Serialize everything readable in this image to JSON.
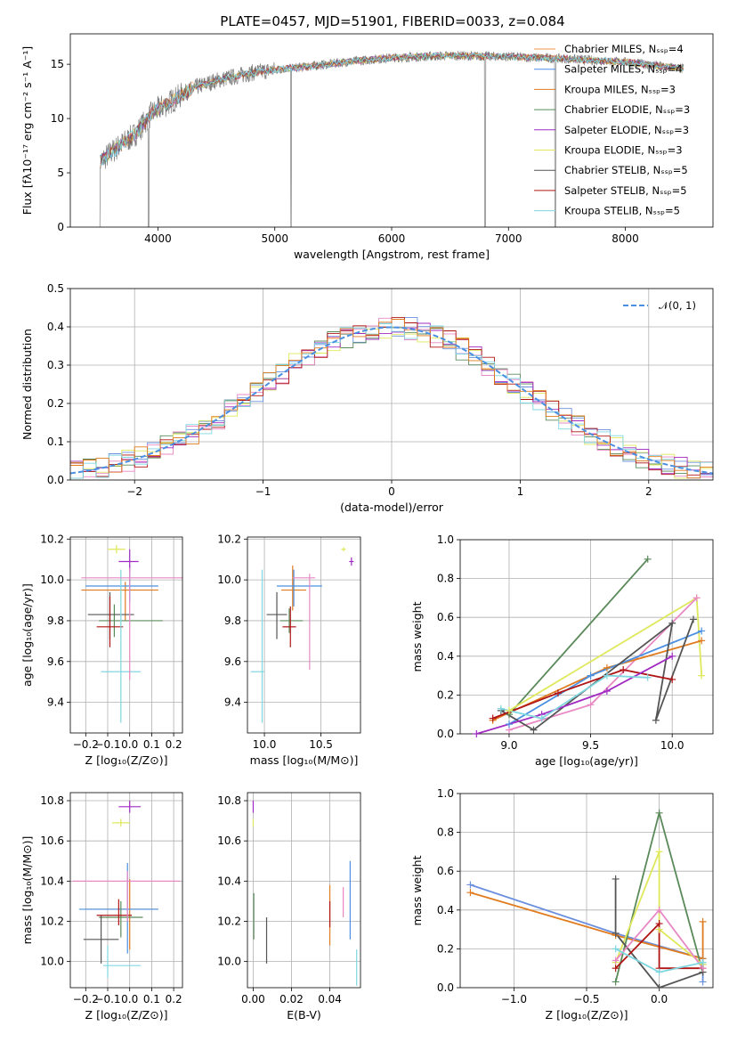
{
  "figure_title": "PLATE=0457, MJD=51901, FIBERID=0033, z=0.084",
  "colors": {
    "series": [
      "#f29544",
      "#4a90e2",
      "#e07b1f",
      "#5a8a5a",
      "#a12bc2",
      "#dfe85a",
      "#555555",
      "#b01515",
      "#7fd7e0"
    ],
    "extra": [
      "#e888c4",
      "#6a8fdf"
    ]
  },
  "chart_data": [
    {
      "id": "spectrum",
      "type": "line",
      "title": "PLATE=0457, MJD=51901, FIBERID=0033, z=0.084",
      "xlabel": "wavelength [Angstrom, rest frame]",
      "ylabel": "Flux [fλ10⁻¹⁷ erg cm⁻² s⁻¹ A⁻¹]",
      "xlim": [
        3250,
        8750
      ],
      "ylim": [
        0,
        17.8
      ],
      "xticks": [
        "4000",
        "5000",
        "6000",
        "7000",
        "8000"
      ],
      "yticks": [
        "0",
        "5",
        "10",
        "15"
      ],
      "grid": false,
      "legend_position": "top-right",
      "series": [
        {
          "name": "Chabrier MILES, Nₛₛₚ=4"
        },
        {
          "name": "Salpeter MILES, Nₛₛₚ=4"
        },
        {
          "name": "Kroupa MILES, Nₛₛₚ=3"
        },
        {
          "name": "Chabrier ELODIE, Nₛₛₚ=3"
        },
        {
          "name": "Salpeter ELODIE, Nₛₛₚ=3"
        },
        {
          "name": "Kroupa ELODIE, Nₛₛₚ=3"
        },
        {
          "name": "Chabrier STELIB, Nₛₛₚ=5"
        },
        {
          "name": "Salpeter STELIB, Nₛₛₚ=5"
        },
        {
          "name": "Kroupa STELIB, Nₛₛₚ=5"
        }
      ],
      "continuum": [
        [
          3500,
          6.0
        ],
        [
          3650,
          7.3
        ],
        [
          3800,
          8.5
        ],
        [
          3950,
          10.5
        ],
        [
          4100,
          11.5
        ],
        [
          4300,
          12.8
        ],
        [
          4500,
          13.5
        ],
        [
          4800,
          14.2
        ],
        [
          5000,
          14.5
        ],
        [
          5300,
          14.8
        ],
        [
          5600,
          15.2
        ],
        [
          6000,
          15.6
        ],
        [
          6500,
          15.8
        ],
        [
          7000,
          15.7
        ],
        [
          7500,
          15.5
        ],
        [
          8000,
          15.2
        ],
        [
          8500,
          14.6
        ]
      ],
      "absorption_features": [
        [
          3500,
          0
        ],
        [
          3920,
          0
        ],
        [
          5140,
          0
        ],
        [
          6800,
          0
        ],
        [
          7400,
          0
        ]
      ]
    },
    {
      "id": "residuals",
      "type": "histogram",
      "xlabel": "(data-model)/error",
      "ylabel": "Normed distribution",
      "xlim": [
        -2.5,
        2.5
      ],
      "ylim": [
        0,
        0.5
      ],
      "xticks": [
        "−2",
        "−1",
        "0",
        "1",
        "2"
      ],
      "yticks": [
        "0.0",
        "0.1",
        "0.2",
        "0.3",
        "0.4",
        "0.5"
      ],
      "grid": true,
      "legend_position": "top-right",
      "legend": "𝒩(0, 1)",
      "bin_width": 0.1,
      "model_curve": "normal(0,1)"
    },
    {
      "id": "age_vs_Z",
      "type": "errorbar",
      "xlabel": "Z [log₁₀(Z/Z⊙)]",
      "ylabel": "age  [log₁₀(age/yr)]",
      "xlim": [
        -0.27,
        0.24
      ],
      "ylim": [
        9.25,
        10.21
      ],
      "xticks": [
        -0.2,
        -0.1,
        0.0,
        0.1,
        0.2
      ],
      "xticklabels": [
        "−0.2",
        "−0.1",
        "0.0",
        "0.1",
        "0.2"
      ],
      "yticks": [
        9.4,
        9.6,
        9.8,
        10.0,
        10.2
      ],
      "yticklabels": [
        "9.4",
        "9.6",
        "9.8",
        "10.0",
        "10.2"
      ],
      "grid": true,
      "points": [
        {
          "x": -0.02,
          "y": 9.95,
          "xerr": [
            0.2,
            0.15
          ],
          "yerr": [
            0.15,
            0.04
          ],
          "color": "#e07b1f"
        },
        {
          "x": 0.0,
          "y": 9.97,
          "xerr": [
            0.2,
            0.13
          ],
          "yerr": [
            0.08,
            0.1
          ],
          "color": "#4a90e2"
        },
        {
          "x": -0.07,
          "y": 9.8,
          "xerr": [
            0.07,
            0.22
          ],
          "yerr": [
            0.08,
            0.08
          ],
          "color": "#5a8a5a"
        },
        {
          "x": 0.0,
          "y": 10.09,
          "xerr": [
            0.05,
            0.04
          ],
          "yerr": [
            0.05,
            0.06
          ],
          "color": "#a12bc2"
        },
        {
          "x": -0.06,
          "y": 10.15,
          "xerr": [
            0.04,
            0.04
          ],
          "yerr": [
            0.02,
            0.02
          ],
          "color": "#dfe85a"
        },
        {
          "x": -0.09,
          "y": 9.83,
          "xerr": [
            0.1,
            0.11
          ],
          "yerr": [
            0.12,
            0.11
          ],
          "color": "#555555"
        },
        {
          "x": -0.09,
          "y": 9.77,
          "xerr": [
            0.06,
            0.06
          ],
          "yerr": [
            0.1,
            0.15
          ],
          "color": "#b01515"
        },
        {
          "x": -0.04,
          "y": 9.55,
          "xerr": [
            0.09,
            0.09
          ],
          "yerr": [
            0.25,
            0.5
          ],
          "color": "#7fd7e0"
        },
        {
          "x": 0.0,
          "y": 10.01,
          "xerr": [
            0.22,
            0.24
          ],
          "yerr": [
            0.5,
            0.05
          ],
          "color": "#e888c4"
        }
      ]
    },
    {
      "id": "age_vs_mass",
      "type": "errorbar",
      "xlabel": "mass [log₁₀(M/M⊙)]",
      "ylabel": "",
      "xlim": [
        9.85,
        10.85
      ],
      "ylim": [
        9.25,
        10.21
      ],
      "xticks": [
        10.0,
        10.5
      ],
      "xticklabels": [
        "10.0",
        "10.5"
      ],
      "yticks": [
        9.4,
        9.6,
        9.8,
        10.0,
        10.2
      ],
      "yticklabels": [
        "9.4",
        "9.6",
        "9.8",
        "10.0",
        "10.2"
      ],
      "grid": true,
      "points": [
        {
          "x": 10.25,
          "y": 9.95,
          "xerr": [
            0.1,
            0.12
          ],
          "yerr": [
            0.1,
            0.12
          ],
          "color": "#e07b1f"
        },
        {
          "x": 10.26,
          "y": 9.97,
          "xerr": [
            0.15,
            0.25
          ],
          "yerr": [
            0.1,
            0.08
          ],
          "color": "#4a90e2"
        },
        {
          "x": 10.22,
          "y": 9.8,
          "xerr": [
            0.08,
            0.12
          ],
          "yerr": [
            0.06,
            0.06
          ],
          "color": "#5a8a5a"
        },
        {
          "x": 10.77,
          "y": 10.09,
          "xerr": [
            0.02,
            0.02
          ],
          "yerr": [
            0.02,
            0.02
          ],
          "color": "#a12bc2"
        },
        {
          "x": 10.7,
          "y": 10.15,
          "xerr": [
            0.02,
            0.02
          ],
          "yerr": [
            0.01,
            0.01
          ],
          "color": "#dfe85a"
        },
        {
          "x": 10.11,
          "y": 9.83,
          "xerr": [
            0.09,
            0.09
          ],
          "yerr": [
            0.12,
            0.11
          ],
          "color": "#555555"
        },
        {
          "x": 10.23,
          "y": 9.77,
          "xerr": [
            0.07,
            0.05
          ],
          "yerr": [
            0.1,
            0.1
          ],
          "color": "#b01515"
        },
        {
          "x": 9.98,
          "y": 9.55,
          "xerr": [
            0.1,
            0.02
          ],
          "yerr": [
            0.25,
            0.5
          ],
          "color": "#7fd7e0"
        },
        {
          "x": 10.4,
          "y": 10.01,
          "xerr": [
            0.15,
            0.05
          ],
          "yerr": [
            0.45,
            0.02
          ],
          "color": "#e888c4"
        }
      ]
    },
    {
      "id": "mass_weight_vs_age",
      "type": "line",
      "xlabel": "age  [log₁₀(age/yr)]",
      "ylabel": "mass weight",
      "xlim": [
        8.7,
        10.25
      ],
      "ylim": [
        0,
        1
      ],
      "xticks": [
        9.0,
        9.5,
        10.0
      ],
      "xticklabels": [
        "9.0",
        "9.5",
        "10.0"
      ],
      "yticks": [
        0.0,
        0.2,
        0.4,
        0.6,
        0.8,
        1.0
      ],
      "yticklabels": [
        "0.0",
        "0.2",
        "0.4",
        "0.6",
        "0.8",
        "1.0"
      ],
      "grid": true,
      "series": [
        {
          "color": "#5a8a5a",
          "x": [
            9.0,
            9.85
          ],
          "y": [
            0.1,
            0.9
          ]
        },
        {
          "color": "#dfe85a",
          "x": [
            9.0,
            10.15,
            10.18
          ],
          "y": [
            0.12,
            0.7,
            0.3
          ]
        },
        {
          "color": "#e888c4",
          "x": [
            9.0,
            9.5,
            10.15
          ],
          "y": [
            0.02,
            0.15,
            0.7
          ]
        },
        {
          "color": "#e07b1f",
          "x": [
            8.9,
            9.6,
            10.18
          ],
          "y": [
            0.07,
            0.34,
            0.48
          ]
        },
        {
          "color": "#4a90e2",
          "x": [
            9.0,
            9.5,
            10.18
          ],
          "y": [
            0.05,
            0.3,
            0.53
          ]
        },
        {
          "color": "#555555",
          "x": [
            8.95,
            9.15,
            10.0,
            9.9,
            10.13
          ],
          "y": [
            0.12,
            0.02,
            0.57,
            0.07,
            0.59
          ]
        },
        {
          "color": "#b01515",
          "x": [
            8.9,
            9.3,
            9.7,
            10.0
          ],
          "y": [
            0.08,
            0.21,
            0.33,
            0.28
          ]
        },
        {
          "color": "#a12bc2",
          "x": [
            8.8,
            9.2,
            9.6,
            10.0
          ],
          "y": [
            0.0,
            0.1,
            0.22,
            0.4
          ]
        },
        {
          "color": "#7fd7e0",
          "x": [
            8.95,
            9.2,
            9.6,
            9.85
          ],
          "y": [
            0.13,
            0.08,
            0.3,
            0.29
          ]
        }
      ]
    },
    {
      "id": "mass_vs_Z",
      "type": "errorbar",
      "xlabel": "Z [log₁₀(Z/Z⊙)]",
      "ylabel": "mass [log₁₀(M/M⊙)]",
      "xlim": [
        -0.27,
        0.24
      ],
      "ylim": [
        9.87,
        10.84
      ],
      "xticks": [
        -0.2,
        -0.1,
        0.0,
        0.1,
        0.2
      ],
      "xticklabels": [
        "−0.2",
        "−0.1",
        "0.0",
        "0.1",
        "0.2"
      ],
      "yticks": [
        10.0,
        10.2,
        10.4,
        10.6,
        10.8
      ],
      "yticklabels": [
        "10.0",
        "10.2",
        "10.4",
        "10.6",
        "10.8"
      ],
      "grid": true,
      "points": [
        {
          "x": 0.0,
          "y": 10.26,
          "xerr": [
            0.2,
            0.13
          ],
          "yerr": [
            0.2,
            0.15
          ],
          "color": "#e07b1f"
        },
        {
          "x": -0.01,
          "y": 10.26,
          "xerr": [
            0.22,
            0.14
          ],
          "yerr": [
            0.22,
            0.23
          ],
          "color": "#4a90e2"
        },
        {
          "x": -0.04,
          "y": 10.22,
          "xerr": [
            0.1,
            0.1
          ],
          "yerr": [
            0.1,
            0.08
          ],
          "color": "#5a8a5a"
        },
        {
          "x": 0.0,
          "y": 10.77,
          "xerr": [
            0.05,
            0.05
          ],
          "yerr": [
            0.03,
            0.03
          ],
          "color": "#a12bc2"
        },
        {
          "x": -0.04,
          "y": 10.69,
          "xerr": [
            0.04,
            0.04
          ],
          "yerr": [
            0.02,
            0.02
          ],
          "color": "#dfe85a"
        },
        {
          "x": -0.13,
          "y": 10.11,
          "xerr": [
            0.08,
            0.08
          ],
          "yerr": [
            0.12,
            0.12
          ],
          "color": "#555555"
        },
        {
          "x": -0.05,
          "y": 10.23,
          "xerr": [
            0.1,
            0.06
          ],
          "yerr": [
            0.05,
            0.08
          ],
          "color": "#b01515"
        },
        {
          "x": -0.1,
          "y": 9.98,
          "xerr": [
            0.02,
            0.15
          ],
          "yerr": [
            0.06,
            0.1
          ],
          "color": "#7fd7e0"
        },
        {
          "x": -0.01,
          "y": 10.4,
          "xerr": [
            0.25,
            0.24
          ],
          "yerr": [
            0.2,
            0.05
          ],
          "color": "#e888c4"
        }
      ]
    },
    {
      "id": "mass_vs_ebv",
      "type": "errorbar",
      "xlabel": "E(B-V)",
      "ylabel": "",
      "xlim": [
        -0.003,
        0.056
      ],
      "ylim": [
        9.87,
        10.84
      ],
      "xticks": [
        0.0,
        0.02,
        0.04
      ],
      "xticklabels": [
        "0.00",
        "0.02",
        "0.04"
      ],
      "yticks": [
        10.0,
        10.2,
        10.4,
        10.6,
        10.8
      ],
      "yticklabels": [
        "10.0",
        "10.2",
        "10.4",
        "10.6",
        "10.8"
      ],
      "grid": true,
      "points": [
        {
          "x": 0.04,
          "y": 10.26,
          "xerr": [
            0,
            0
          ],
          "yerr": [
            0.18,
            0.12
          ],
          "color": "#e07b1f"
        },
        {
          "x": 0.0506,
          "y": 10.26,
          "xerr": [
            0,
            0
          ],
          "yerr": [
            0.15,
            0.24
          ],
          "color": "#4a90e2"
        },
        {
          "x": 0.0003,
          "y": 10.22,
          "xerr": [
            0,
            0
          ],
          "yerr": [
            0.11,
            0.12
          ],
          "color": "#5a8a5a"
        },
        {
          "x": 0.0,
          "y": 10.77,
          "xerr": [
            0,
            0
          ],
          "yerr": [
            0.03,
            0.03
          ],
          "color": "#a12bc2"
        },
        {
          "x": 0.0,
          "y": 10.69,
          "xerr": [
            0,
            0
          ],
          "yerr": [
            0.02,
            0.02
          ],
          "color": "#dfe85a"
        },
        {
          "x": 0.007,
          "y": 10.11,
          "xerr": [
            0,
            0
          ],
          "yerr": [
            0.12,
            0.11
          ],
          "color": "#555555"
        },
        {
          "x": 0.04,
          "y": 10.22,
          "xerr": [
            0,
            0
          ],
          "yerr": [
            0.05,
            0.08
          ],
          "color": "#b01515"
        },
        {
          "x": 0.054,
          "y": 9.98,
          "xerr": [
            0,
            0
          ],
          "yerr": [
            0.1,
            0.08
          ],
          "color": "#7fd7e0"
        },
        {
          "x": 0.047,
          "y": 10.27,
          "xerr": [
            0,
            0
          ],
          "yerr": [
            0.05,
            0.1
          ],
          "color": "#e888c4"
        }
      ]
    },
    {
      "id": "mass_weight_vs_Z",
      "type": "line",
      "xlabel": "Z [log₁₀(Z/Z⊙)]",
      "ylabel": "mass weight",
      "xlim": [
        -1.37,
        0.37
      ],
      "ylim": [
        0,
        1
      ],
      "xticks": [
        -1.0,
        -0.5,
        0.0
      ],
      "xticklabels": [
        "−1.0",
        "−0.5",
        "0.0"
      ],
      "yticks": [
        0.0,
        0.2,
        0.4,
        0.6,
        0.8,
        1.0
      ],
      "yticklabels": [
        "0.0",
        "0.2",
        "0.4",
        "0.6",
        "0.8",
        "1.0"
      ],
      "grid": true,
      "series": [
        {
          "color": "#6a8fdf",
          "x": [
            -1.3,
            -0.3,
            0.3,
            0.3
          ],
          "y": [
            0.53,
            0.28,
            0.15,
            0.03
          ]
        },
        {
          "color": "#e07b1f",
          "x": [
            -1.3,
            -0.3,
            0.3,
            0.3
          ],
          "y": [
            0.49,
            0.27,
            0.15,
            0.34
          ]
        },
        {
          "color": "#5a8a5a",
          "x": [
            -0.3,
            0.0,
            0.3,
            0.3
          ],
          "y": [
            0.03,
            0.9,
            0.08,
            0.12
          ]
        },
        {
          "color": "#dfe85a",
          "x": [
            -0.3,
            0.0,
            0.0,
            0.3
          ],
          "y": [
            0.13,
            0.7,
            0.3,
            0.12
          ]
        },
        {
          "color": "#555555",
          "x": [
            -0.3,
            -0.3,
            0.0,
            0.3
          ],
          "y": [
            0.56,
            0.28,
            0.0,
            0.08
          ]
        },
        {
          "color": "#b01515",
          "x": [
            -0.3,
            0.0,
            0.0,
            0.3
          ],
          "y": [
            0.1,
            0.33,
            0.1,
            0.1
          ]
        },
        {
          "color": "#e888c4",
          "x": [
            -0.3,
            0.0,
            0.3
          ],
          "y": [
            0.14,
            0.4,
            0.1
          ]
        },
        {
          "color": "#7fd7e0",
          "x": [
            -0.3,
            0.0,
            0.3
          ],
          "y": [
            0.2,
            0.08,
            0.13
          ]
        }
      ]
    }
  ]
}
